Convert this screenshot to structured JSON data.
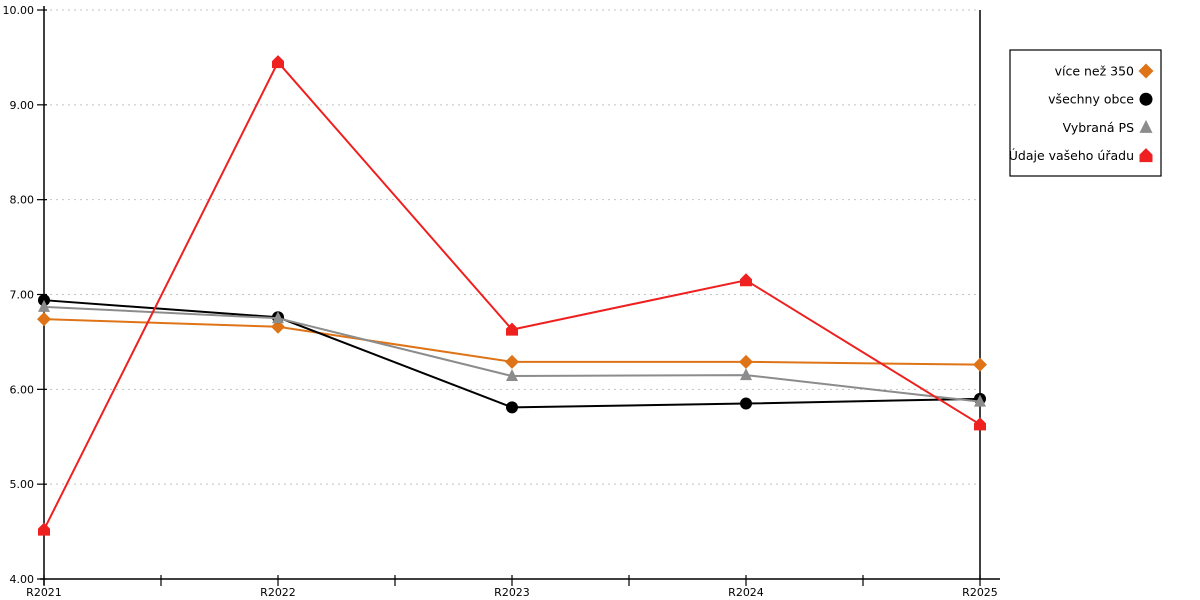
{
  "chart_data": {
    "type": "line",
    "title": "",
    "xlabel": "",
    "ylabel": "",
    "categories": [
      "R2021",
      "R2022",
      "R2023",
      "R2024",
      "R2025"
    ],
    "series": [
      {
        "name": "více než 350",
        "color": "#DE7417",
        "marker": "diamond",
        "values": [
          6.74,
          6.66,
          6.29,
          6.29,
          6.26
        ]
      },
      {
        "name": "všechny obce",
        "color": "#000000",
        "marker": "circle",
        "values": [
          6.94,
          6.76,
          5.81,
          5.85,
          5.9
        ]
      },
      {
        "name": "Vybraná PS",
        "color": "#8C8C8C",
        "marker": "triangle",
        "values": [
          6.87,
          6.75,
          6.14,
          6.15,
          5.87
        ]
      },
      {
        "name": "Údaje vašeho úřadu",
        "color": "#EE2120",
        "marker": "pentagon",
        "values": [
          4.52,
          9.45,
          6.63,
          7.15,
          5.63
        ]
      }
    ],
    "ylim": [
      4,
      10
    ],
    "ytick_step": 1,
    "ytick_labels": [
      "4.00",
      "5.00",
      "6.00",
      "7.00",
      "8.00",
      "9.00",
      "10.00"
    ],
    "grid": "horizontal-dashed",
    "gridline_color": "#C3C3C3",
    "axis_color": "#000000",
    "background_color": "#FFFFFF",
    "legend_position": "outside-right",
    "legend_border_color": "#000000"
  }
}
